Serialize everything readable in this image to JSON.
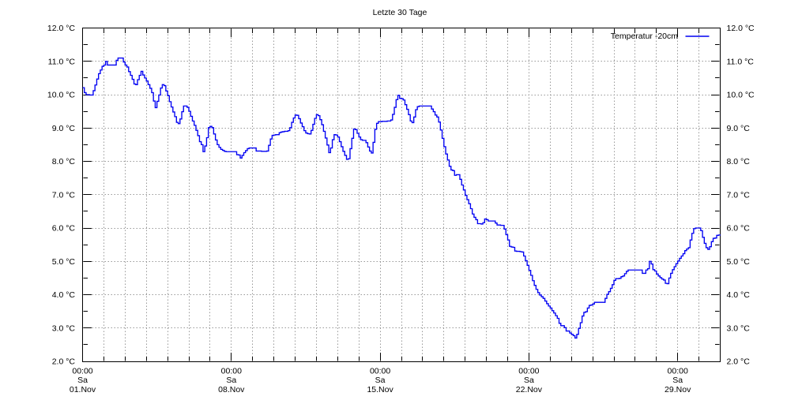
{
  "title": "Letzte 30 Tage",
  "legend": {
    "label": "Temperatur  -20cm"
  },
  "axes": {
    "y_unit": "°C",
    "y_tick_labels": [
      "12.0 °C",
      "11.0 °C",
      "10.0 °C",
      "9.0 °C",
      "8.0 °C",
      "7.0 °C",
      "6.0 °C",
      "5.0 °C",
      "4.0 °C",
      "3.0 °C",
      "2.0 °C"
    ],
    "y_tick_values": [
      12,
      11,
      10,
      9,
      8,
      7,
      6,
      5,
      4,
      3,
      2
    ],
    "y_minor_step": 0.5,
    "x_total_days": 30,
    "x_labels": [
      {
        "day": 0,
        "time": "00:00",
        "weekday": "Sa",
        "date": "01.Nov"
      },
      {
        "day": 7,
        "time": "00:00",
        "weekday": "Sa",
        "date": "08.Nov"
      },
      {
        "day": 14,
        "time": "00:00",
        "weekday": "Sa",
        "date": "15.Nov"
      },
      {
        "day": 21,
        "time": "00:00",
        "weekday": "Sa",
        "date": "22.Nov"
      },
      {
        "day": 28,
        "time": "00:00",
        "weekday": "Sa",
        "date": "29.Nov"
      }
    ]
  },
  "chart_data": {
    "type": "line",
    "title": "Letzte 30 Tage",
    "xlabel": "",
    "ylabel": "",
    "ylim": [
      2.0,
      12.0
    ],
    "xlim_days": [
      0,
      30
    ],
    "grid": true,
    "legend_position": "top-right",
    "x_tick_labels": [
      "01.Nov",
      "08.Nov",
      "15.Nov",
      "22.Nov",
      "29.Nov"
    ],
    "series": [
      {
        "name": "Temperatur  -20cm",
        "unit": "°C",
        "start_label": "Sa 01.Nov 00:00",
        "sample_interval_hours": 2,
        "draw_style": "steps",
        "values": [
          10.21,
          10.06,
          10.0,
          10.0,
          9.99,
          9.99,
          10.12,
          10.29,
          10.47,
          10.63,
          10.74,
          10.85,
          10.89,
          11.0,
          10.89,
          10.89,
          10.89,
          10.89,
          10.89,
          11.03,
          11.1,
          11.1,
          11.1,
          10.98,
          10.89,
          10.83,
          10.69,
          10.58,
          10.46,
          10.32,
          10.3,
          10.45,
          10.58,
          10.7,
          10.59,
          10.5,
          10.41,
          10.3,
          10.19,
          10.06,
          9.81,
          9.61,
          9.8,
          9.99,
          10.2,
          10.3,
          10.27,
          10.11,
          9.97,
          9.79,
          9.63,
          9.48,
          9.34,
          9.17,
          9.13,
          9.27,
          9.49,
          9.66,
          9.66,
          9.62,
          9.5,
          9.35,
          9.21,
          9.08,
          8.93,
          8.77,
          8.59,
          8.5,
          8.29,
          8.46,
          8.71,
          9.01,
          9.05,
          9.01,
          8.82,
          8.64,
          8.5,
          8.42,
          8.36,
          8.33,
          8.3,
          8.29,
          8.29,
          8.29,
          8.29,
          8.29,
          8.29,
          8.2,
          8.19,
          8.1,
          8.18,
          8.26,
          8.32,
          8.38,
          8.4,
          8.4,
          8.4,
          8.4,
          8.31,
          8.31,
          8.31,
          8.3,
          8.3,
          8.3,
          8.31,
          8.48,
          8.67,
          8.78,
          8.79,
          8.8,
          8.8,
          8.86,
          8.88,
          8.89,
          8.9,
          8.9,
          8.92,
          9.01,
          9.17,
          9.3,
          9.39,
          9.38,
          9.28,
          9.15,
          9.04,
          8.92,
          8.85,
          8.83,
          8.82,
          8.93,
          9.11,
          9.29,
          9.4,
          9.37,
          9.25,
          9.1,
          8.9,
          8.7,
          8.49,
          8.26,
          8.4,
          8.65,
          8.8,
          8.79,
          8.73,
          8.59,
          8.44,
          8.3,
          8.18,
          8.06,
          8.08,
          8.38,
          8.69,
          8.97,
          8.95,
          8.84,
          8.73,
          8.65,
          8.63,
          8.63,
          8.56,
          8.43,
          8.31,
          8.25,
          8.57,
          8.96,
          9.14,
          9.19,
          9.19,
          9.2,
          9.2,
          9.2,
          9.21,
          9.21,
          9.24,
          9.41,
          9.62,
          9.85,
          9.98,
          9.89,
          9.88,
          9.84,
          9.7,
          9.56,
          9.4,
          9.21,
          9.16,
          9.33,
          9.55,
          9.64,
          9.66,
          9.66,
          9.66,
          9.66,
          9.66,
          9.66,
          9.66,
          9.57,
          9.49,
          9.39,
          9.33,
          9.18,
          8.94,
          8.69,
          8.44,
          8.22,
          8.04,
          7.85,
          7.74,
          7.72,
          7.58,
          7.6,
          7.6,
          7.46,
          7.29,
          7.14,
          6.98,
          6.85,
          6.73,
          6.58,
          6.42,
          6.32,
          6.25,
          6.13,
          6.13,
          6.12,
          6.16,
          6.27,
          6.25,
          6.21,
          6.21,
          6.21,
          6.21,
          6.15,
          6.09,
          6.09,
          6.08,
          6.08,
          5.97,
          5.8,
          5.64,
          5.45,
          5.43,
          5.42,
          5.31,
          5.3,
          5.3,
          5.29,
          5.28,
          5.16,
          5.02,
          4.88,
          4.73,
          4.58,
          4.42,
          4.28,
          4.16,
          4.06,
          3.99,
          3.94,
          3.89,
          3.81,
          3.73,
          3.66,
          3.6,
          3.52,
          3.45,
          3.37,
          3.29,
          3.14,
          3.07,
          3.07,
          3.01,
          2.91,
          2.91,
          2.85,
          2.81,
          2.77,
          2.7,
          2.81,
          2.99,
          3.16,
          3.36,
          3.47,
          3.49,
          3.6,
          3.68,
          3.69,
          3.72,
          3.77,
          3.77,
          3.77,
          3.77,
          3.77,
          3.77,
          3.89,
          4.01,
          4.09,
          4.19,
          4.3,
          4.43,
          4.48,
          4.48,
          4.49,
          4.54,
          4.56,
          4.63,
          4.7,
          4.74,
          4.74,
          4.74,
          4.74,
          4.74,
          4.74,
          4.74,
          4.74,
          4.64,
          4.64,
          4.74,
          4.78,
          5.0,
          4.92,
          4.75,
          4.71,
          4.62,
          4.56,
          4.51,
          4.47,
          4.44,
          4.34,
          4.33,
          4.5,
          4.64,
          4.75,
          4.84,
          4.93,
          5.01,
          5.09,
          5.16,
          5.23,
          5.32,
          5.37,
          5.41,
          5.64,
          5.84,
          5.98,
          6.0,
          6.0,
          6.0,
          5.92,
          5.72,
          5.54,
          5.41,
          5.36,
          5.44,
          5.59,
          5.69,
          5.7,
          5.78,
          5.79,
          5.8
        ]
      }
    ]
  },
  "colors": {
    "line": "#0101f2",
    "grid": "#999999",
    "frame": "#000000",
    "text": "#000000",
    "background": "#ffffff"
  }
}
